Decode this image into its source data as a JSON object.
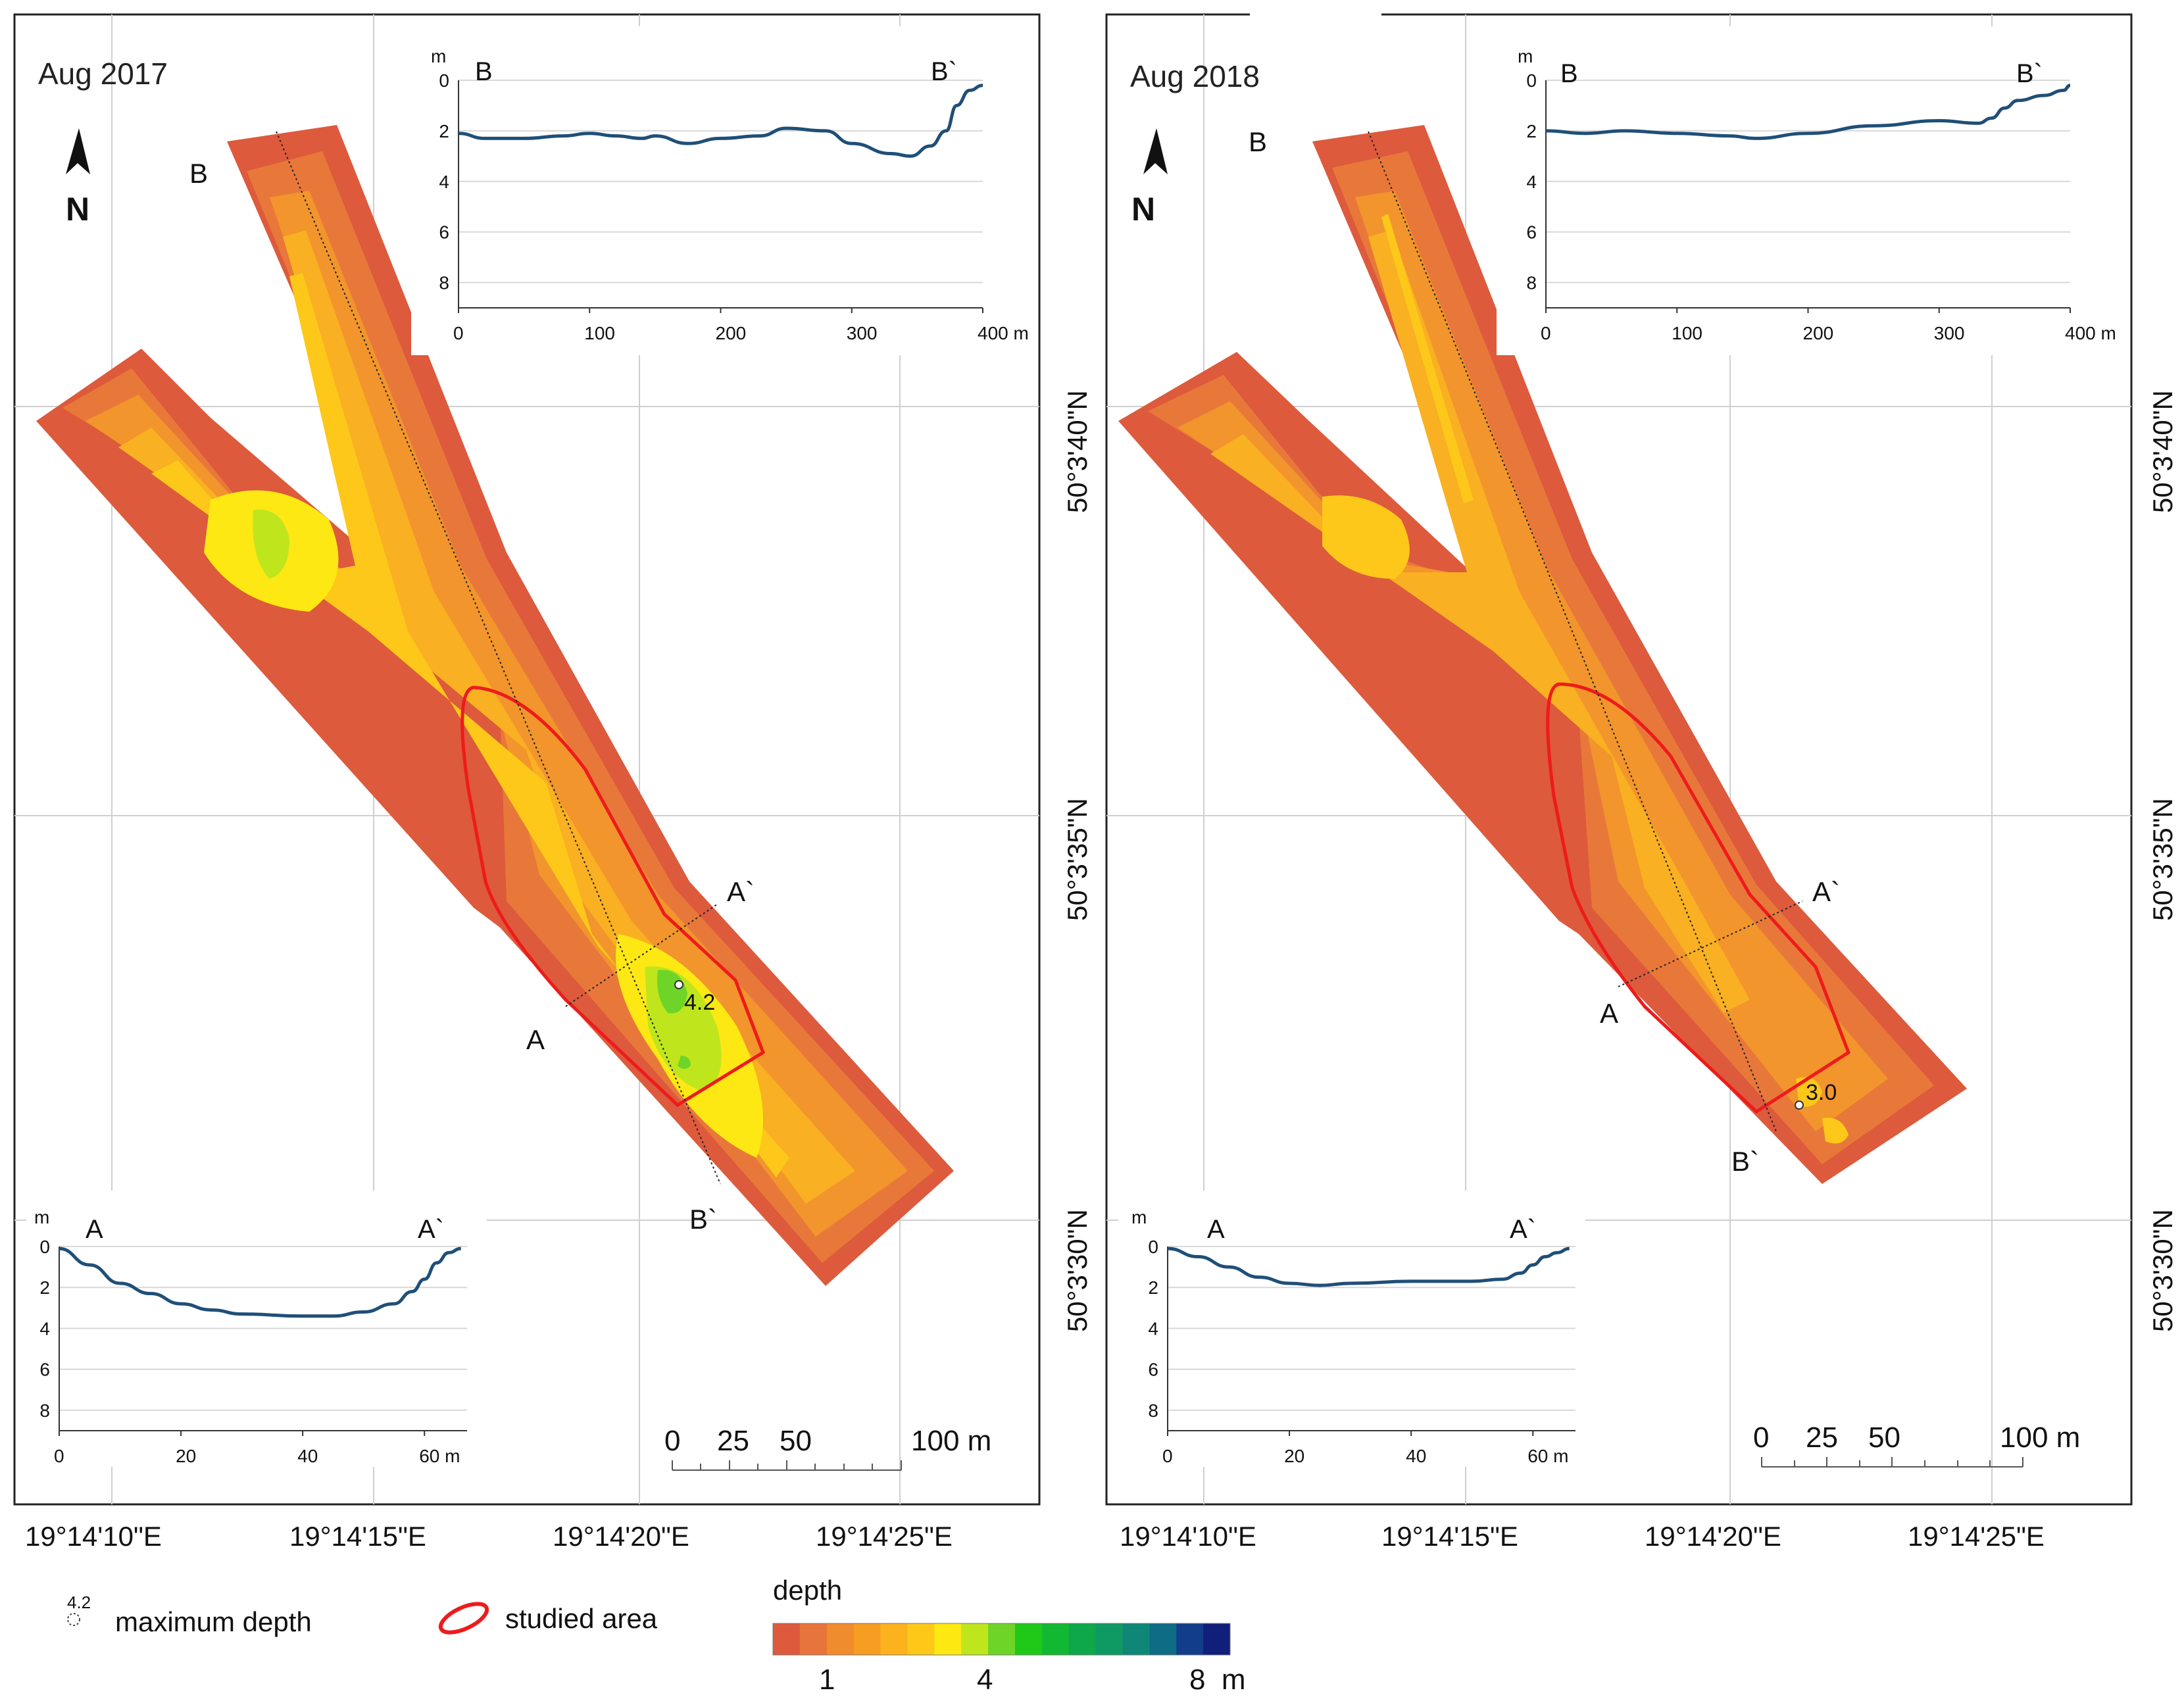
{
  "panels": [
    {
      "title": "Aug 2017",
      "max_depth_label": "4.2",
      "north_label": "N",
      "section_a": {
        "start": "A",
        "end": "A`"
      },
      "section_b": {
        "start": "B",
        "end": "B`"
      },
      "profile_ab": {
        "unit": "m",
        "x_ticks": [
          "0",
          "20",
          "40",
          "60 m"
        ],
        "y_ticks": [
          "0",
          "2",
          "4",
          "6",
          "8"
        ],
        "x_range": [
          0,
          67
        ],
        "y_range": [
          0,
          9
        ],
        "depths": [
          [
            0,
            0.1
          ],
          [
            5,
            0.9
          ],
          [
            10,
            1.8
          ],
          [
            15,
            2.3
          ],
          [
            20,
            2.8
          ],
          [
            25,
            3.1
          ],
          [
            30,
            3.3
          ],
          [
            40,
            3.4
          ],
          [
            45,
            3.4
          ],
          [
            50,
            3.2
          ],
          [
            55,
            2.8
          ],
          [
            58,
            2.2
          ],
          [
            60,
            1.6
          ],
          [
            62,
            0.8
          ],
          [
            64,
            0.3
          ],
          [
            66,
            0.1
          ]
        ]
      },
      "profile_bb": {
        "unit": "m",
        "x_ticks": [
          "0",
          "100",
          "200",
          "300",
          "400 m"
        ],
        "y_ticks": [
          "0",
          "2",
          "4",
          "6",
          "8"
        ],
        "x_range": [
          0,
          400
        ],
        "y_range": [
          0,
          9
        ],
        "depths": [
          [
            0,
            2.1
          ],
          [
            20,
            2.3
          ],
          [
            50,
            2.3
          ],
          [
            80,
            2.2
          ],
          [
            100,
            2.1
          ],
          [
            120,
            2.2
          ],
          [
            140,
            2.3
          ],
          [
            150,
            2.2
          ],
          [
            175,
            2.5
          ],
          [
            200,
            2.3
          ],
          [
            230,
            2.2
          ],
          [
            250,
            1.9
          ],
          [
            280,
            2.0
          ],
          [
            300,
            2.5
          ],
          [
            330,
            2.9
          ],
          [
            345,
            3.0
          ],
          [
            360,
            2.6
          ],
          [
            372,
            2.0
          ],
          [
            380,
            1.0
          ],
          [
            390,
            0.4
          ],
          [
            400,
            0.2
          ]
        ]
      },
      "scale_bar": {
        "labels": [
          "0",
          "25",
          "50",
          "100 m"
        ]
      },
      "lon_labels": [
        "19°14'10\"E",
        "19°14'15\"E",
        "19°14'20\"E",
        "19°14'25\"E"
      ],
      "lat_labels": [
        "50°3'40\"N",
        "50°3'35\"N",
        "50°3'30\"N"
      ]
    },
    {
      "title": "Aug 2018",
      "max_depth_label": "3.0",
      "north_label": "N",
      "section_a": {
        "start": "A",
        "end": "A`"
      },
      "section_b": {
        "start": "B",
        "end": "B`"
      },
      "profile_ab": {
        "unit": "m",
        "x_ticks": [
          "0",
          "20",
          "40",
          "60 m"
        ],
        "y_ticks": [
          "0",
          "2",
          "4",
          "6",
          "8"
        ],
        "x_range": [
          0,
          67
        ],
        "y_range": [
          0,
          9
        ],
        "depths": [
          [
            0,
            0.1
          ],
          [
            5,
            0.5
          ],
          [
            10,
            1.0
          ],
          [
            15,
            1.5
          ],
          [
            20,
            1.8
          ],
          [
            25,
            1.9
          ],
          [
            30,
            1.8
          ],
          [
            40,
            1.7
          ],
          [
            50,
            1.7
          ],
          [
            55,
            1.6
          ],
          [
            58,
            1.3
          ],
          [
            60,
            0.9
          ],
          [
            62,
            0.5
          ],
          [
            64,
            0.3
          ],
          [
            66,
            0.1
          ]
        ]
      },
      "profile_bb": {
        "unit": "m",
        "x_ticks": [
          "0",
          "100",
          "200",
          "300",
          "400 m"
        ],
        "y_ticks": [
          "0",
          "2",
          "4",
          "6",
          "8"
        ],
        "x_range": [
          0,
          400
        ],
        "y_range": [
          0,
          9
        ],
        "depths": [
          [
            0,
            2.0
          ],
          [
            30,
            2.1
          ],
          [
            60,
            2.0
          ],
          [
            100,
            2.1
          ],
          [
            140,
            2.2
          ],
          [
            160,
            2.3
          ],
          [
            200,
            2.1
          ],
          [
            250,
            1.8
          ],
          [
            300,
            1.6
          ],
          [
            330,
            1.7
          ],
          [
            340,
            1.5
          ],
          [
            350,
            1.1
          ],
          [
            360,
            0.8
          ],
          [
            380,
            0.6
          ],
          [
            395,
            0.4
          ],
          [
            400,
            0.2
          ]
        ]
      },
      "scale_bar": {
        "labels": [
          "0",
          "25",
          "50",
          "100 m"
        ]
      },
      "lon_labels": [
        "19°14'10\"E",
        "19°14'15\"E",
        "19°14'20\"E",
        "19°14'25\"E"
      ],
      "lat_labels": [
        "50°3'40\"N",
        "50°3'35\"N",
        "50°3'30\"N"
      ]
    }
  ],
  "legend": {
    "max_depth_symbol_value": "4.2",
    "max_depth_label": "maximum depth",
    "studied_area_label": "studied area",
    "depth_title": "depth",
    "colorbar_labels": [
      "1",
      "4",
      "8  m"
    ],
    "colors": [
      "#dd5a3c",
      "#e7743a",
      "#f08b2e",
      "#f79d22",
      "#fbb21c",
      "#fdc818",
      "#fde812",
      "#bfe61c",
      "#6ed428",
      "#20c818",
      "#12b832",
      "#0ea74a",
      "#0f9a63",
      "#0f8777",
      "#0e6c85",
      "#123d8a",
      "#101f7a"
    ]
  },
  "map_colors": {
    "shallow": "#dd5a3c",
    "mid1": "#e8783a",
    "mid2": "#f2952c",
    "mid3": "#f9b022",
    "mid4": "#fdc81a",
    "mid5": "#fde814",
    "deep1": "#bfe61c",
    "deep2": "#6ed428",
    "studied_outline": "#ee1b1b",
    "profile_line": "#1f4f78"
  }
}
